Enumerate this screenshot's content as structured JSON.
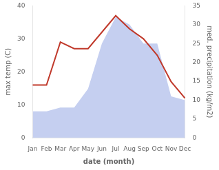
{
  "chart_data": {
    "type": "line",
    "xlabel": "date (month)",
    "ylabel": "max temp (C)",
    "y2label": "med. precipitation (kg/m2)",
    "categories": [
      "Jan",
      "Feb",
      "Mar",
      "Apr",
      "May",
      "Jun",
      "Jul",
      "Aug",
      "Sep",
      "Oct",
      "Nov",
      "Dec"
    ],
    "series": [
      {
        "type": "area",
        "axis": "y2",
        "color": "#c5cff0",
        "values": [
          7,
          7,
          8,
          8,
          13,
          25,
          32,
          30,
          25,
          25,
          11,
          10
        ]
      },
      {
        "type": "line",
        "color": "#c0392b",
        "values": [
          16,
          16,
          29,
          27,
          27,
          32,
          37,
          33,
          30,
          25,
          17,
          12
        ]
      }
    ],
    "ylim": [
      0,
      40
    ],
    "yticks": [
      0,
      10,
      20,
      30,
      40
    ],
    "y2lim": [
      0,
      35
    ],
    "y2ticks": [
      0,
      5,
      10,
      15,
      20,
      25,
      30,
      35
    ],
    "grid": false
  }
}
